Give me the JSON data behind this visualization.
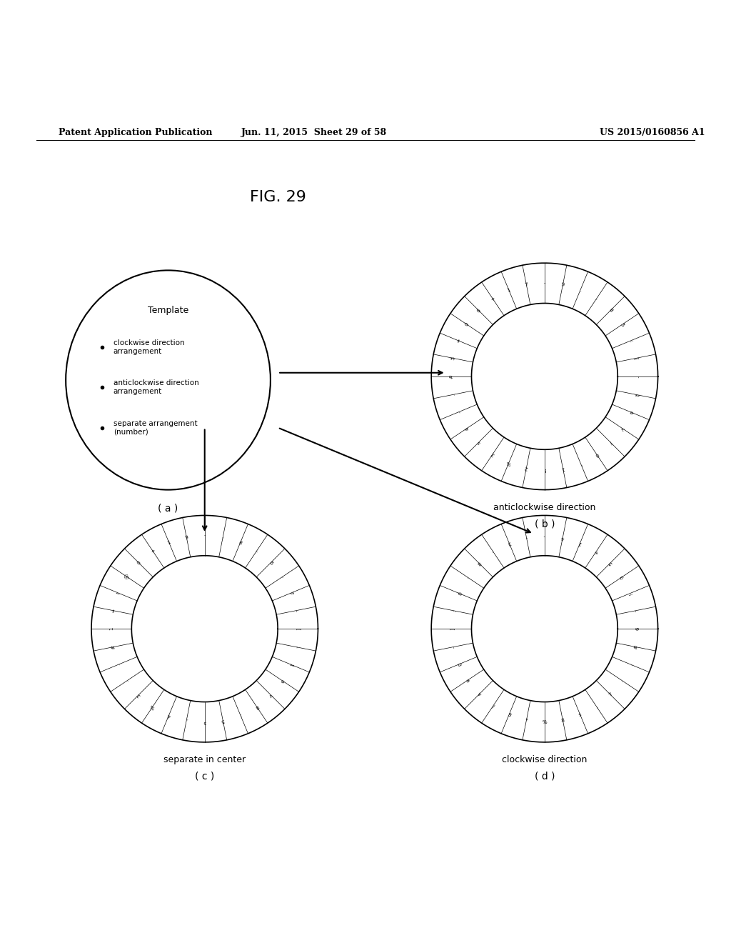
{
  "title": "FIG. 29",
  "header_left": "Patent Application Publication",
  "header_mid": "Jun. 11, 2015  Sheet 29 of 58",
  "header_right": "US 2015/0160856 A1",
  "bg_color": "#ffffff",
  "template_text": "Template",
  "bullet_items": [
    "clockwise direction\narrangement",
    "anticlockwise direction\narrangement",
    "separate arrangement\n(number)"
  ],
  "label_a": "( a )",
  "label_b": "( b )",
  "label_c": "( c )",
  "label_d": "( d )",
  "caption_b": "anticlockwise direction",
  "caption_c": "separate in center",
  "caption_d": "clockwise direction",
  "ring_outer_r": 0.18,
  "ring_inner_r": 0.12,
  "text_color": "#000000",
  "line_color": "#000000"
}
